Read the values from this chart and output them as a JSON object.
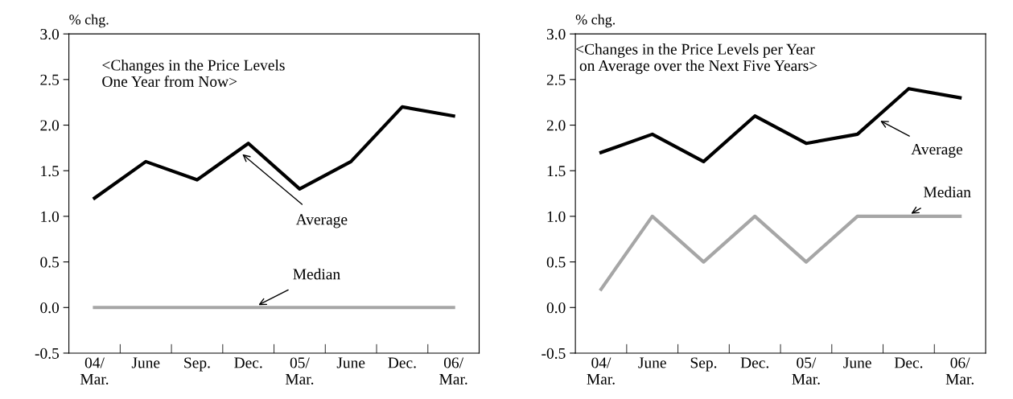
{
  "chart_data": [
    {
      "type": "line",
      "title": "<Changes in the Price Levels\nOne Year from Now>",
      "ylabel": "% chg.",
      "categories": [
        "04/\nMar.",
        "June",
        "Sep.",
        "Dec.",
        "05/\nMar.",
        "June",
        "Dec.",
        "06/\nMar."
      ],
      "series": [
        {
          "name": "Average",
          "color": "#000000",
          "values": [
            1.2,
            1.6,
            1.4,
            1.8,
            1.3,
            1.6,
            2.2,
            2.1
          ]
        },
        {
          "name": "Median",
          "color": "#a6a6a6",
          "values": [
            0.0,
            0.0,
            0.0,
            0.0,
            0.0,
            0.0,
            0.0,
            0.0
          ]
        }
      ],
      "ylim": [
        -0.5,
        3.0
      ],
      "yticks": [
        {
          "value": -0.5,
          "label": "-0.5"
        },
        {
          "value": 0,
          "label": "0.0"
        },
        {
          "value": 0.5,
          "label": "0.5"
        },
        {
          "value": 1,
          "label": "1.0"
        },
        {
          "value": 1.5,
          "label": "1.5"
        },
        {
          "value": 2,
          "label": "2.0"
        },
        {
          "value": 2.5,
          "label": "2.5"
        },
        {
          "value": 3,
          "label": "3.0"
        }
      ],
      "grid": false,
      "line_style": "solid",
      "marker": "none"
    },
    {
      "type": "line",
      "title": "<Changes in the Price Levels per Year\n on Average over the Next Five Years>",
      "ylabel": "% chg.",
      "categories": [
        "04/\nMar.",
        "June",
        "Sep.",
        "Dec.",
        "05/\nMar.",
        "June",
        "Dec.",
        "06/\nMar."
      ],
      "series": [
        {
          "name": "Average",
          "color": "#000000",
          "values": [
            1.7,
            1.9,
            1.6,
            2.1,
            1.8,
            1.9,
            2.4,
            2.3
          ]
        },
        {
          "name": "Median",
          "color": "#a6a6a6",
          "values": [
            0.2,
            1.0,
            0.5,
            1.0,
            0.5,
            1.0,
            1.0,
            1.0
          ]
        }
      ],
      "ylim": [
        -0.5,
        3.0
      ],
      "yticks": [
        {
          "value": -0.5,
          "label": "-0.5"
        },
        {
          "value": 0,
          "label": "0.0"
        },
        {
          "value": 0.5,
          "label": "0.5"
        },
        {
          "value": 1,
          "label": "1.0"
        },
        {
          "value": 1.5,
          "label": "1.5"
        },
        {
          "value": 2,
          "label": "2.0"
        },
        {
          "value": 2.5,
          "label": "2.5"
        },
        {
          "value": 3,
          "label": "3.0"
        }
      ],
      "grid": false,
      "line_style": "solid",
      "marker": "none"
    }
  ]
}
